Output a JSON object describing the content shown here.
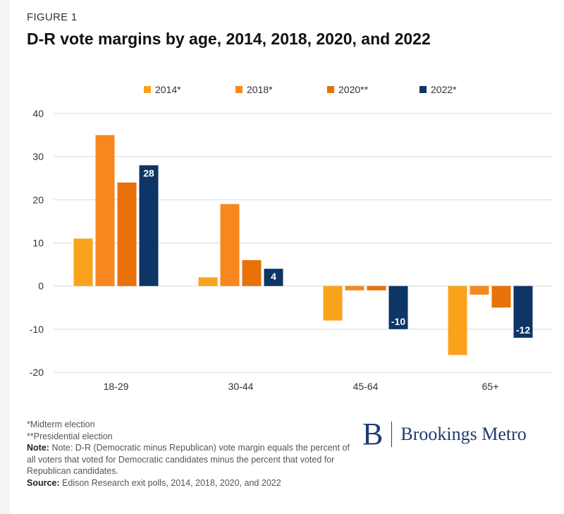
{
  "header": {
    "figure_label": "FIGURE 1",
    "title": "D-R vote margins by age, 2014, 2018, 2020, and 2022"
  },
  "footer": {
    "midterm_note": "*Midterm election",
    "presidential_note": "**Presidential election",
    "note_label": "Note:",
    "note_text": "Note: D-R (Democratic minus Republican) vote margin equals the percent of all voters that voted for Democratic candidates minus the percent that voted for Republican candidates.",
    "source_label": "Source:",
    "source_text": "Edison Research exit polls, 2014, 2018, 2020, and 2022"
  },
  "logo": {
    "mark": "B",
    "text": "Brookings Metro"
  },
  "chart_data": {
    "type": "bar",
    "categories": [
      "18-29",
      "30-44",
      "45-64",
      "65+"
    ],
    "series": [
      {
        "name": "2014*",
        "color": "#f9a31c",
        "values": [
          11,
          2,
          -8,
          -16
        ]
      },
      {
        "name": "2018*",
        "color": "#f7871f",
        "values": [
          35,
          19,
          -1,
          -2
        ]
      },
      {
        "name": "2020**",
        "color": "#e8710a",
        "values": [
          24,
          6,
          -1,
          -5
        ]
      },
      {
        "name": "2022*",
        "color": "#0d3566",
        "values": [
          28,
          4,
          -10,
          -12
        ],
        "labeled": true
      }
    ],
    "ylim": [
      -20,
      40
    ],
    "yticks": [
      -20,
      -10,
      0,
      10,
      20,
      30,
      40
    ],
    "grid": true,
    "legend_position": "top"
  }
}
